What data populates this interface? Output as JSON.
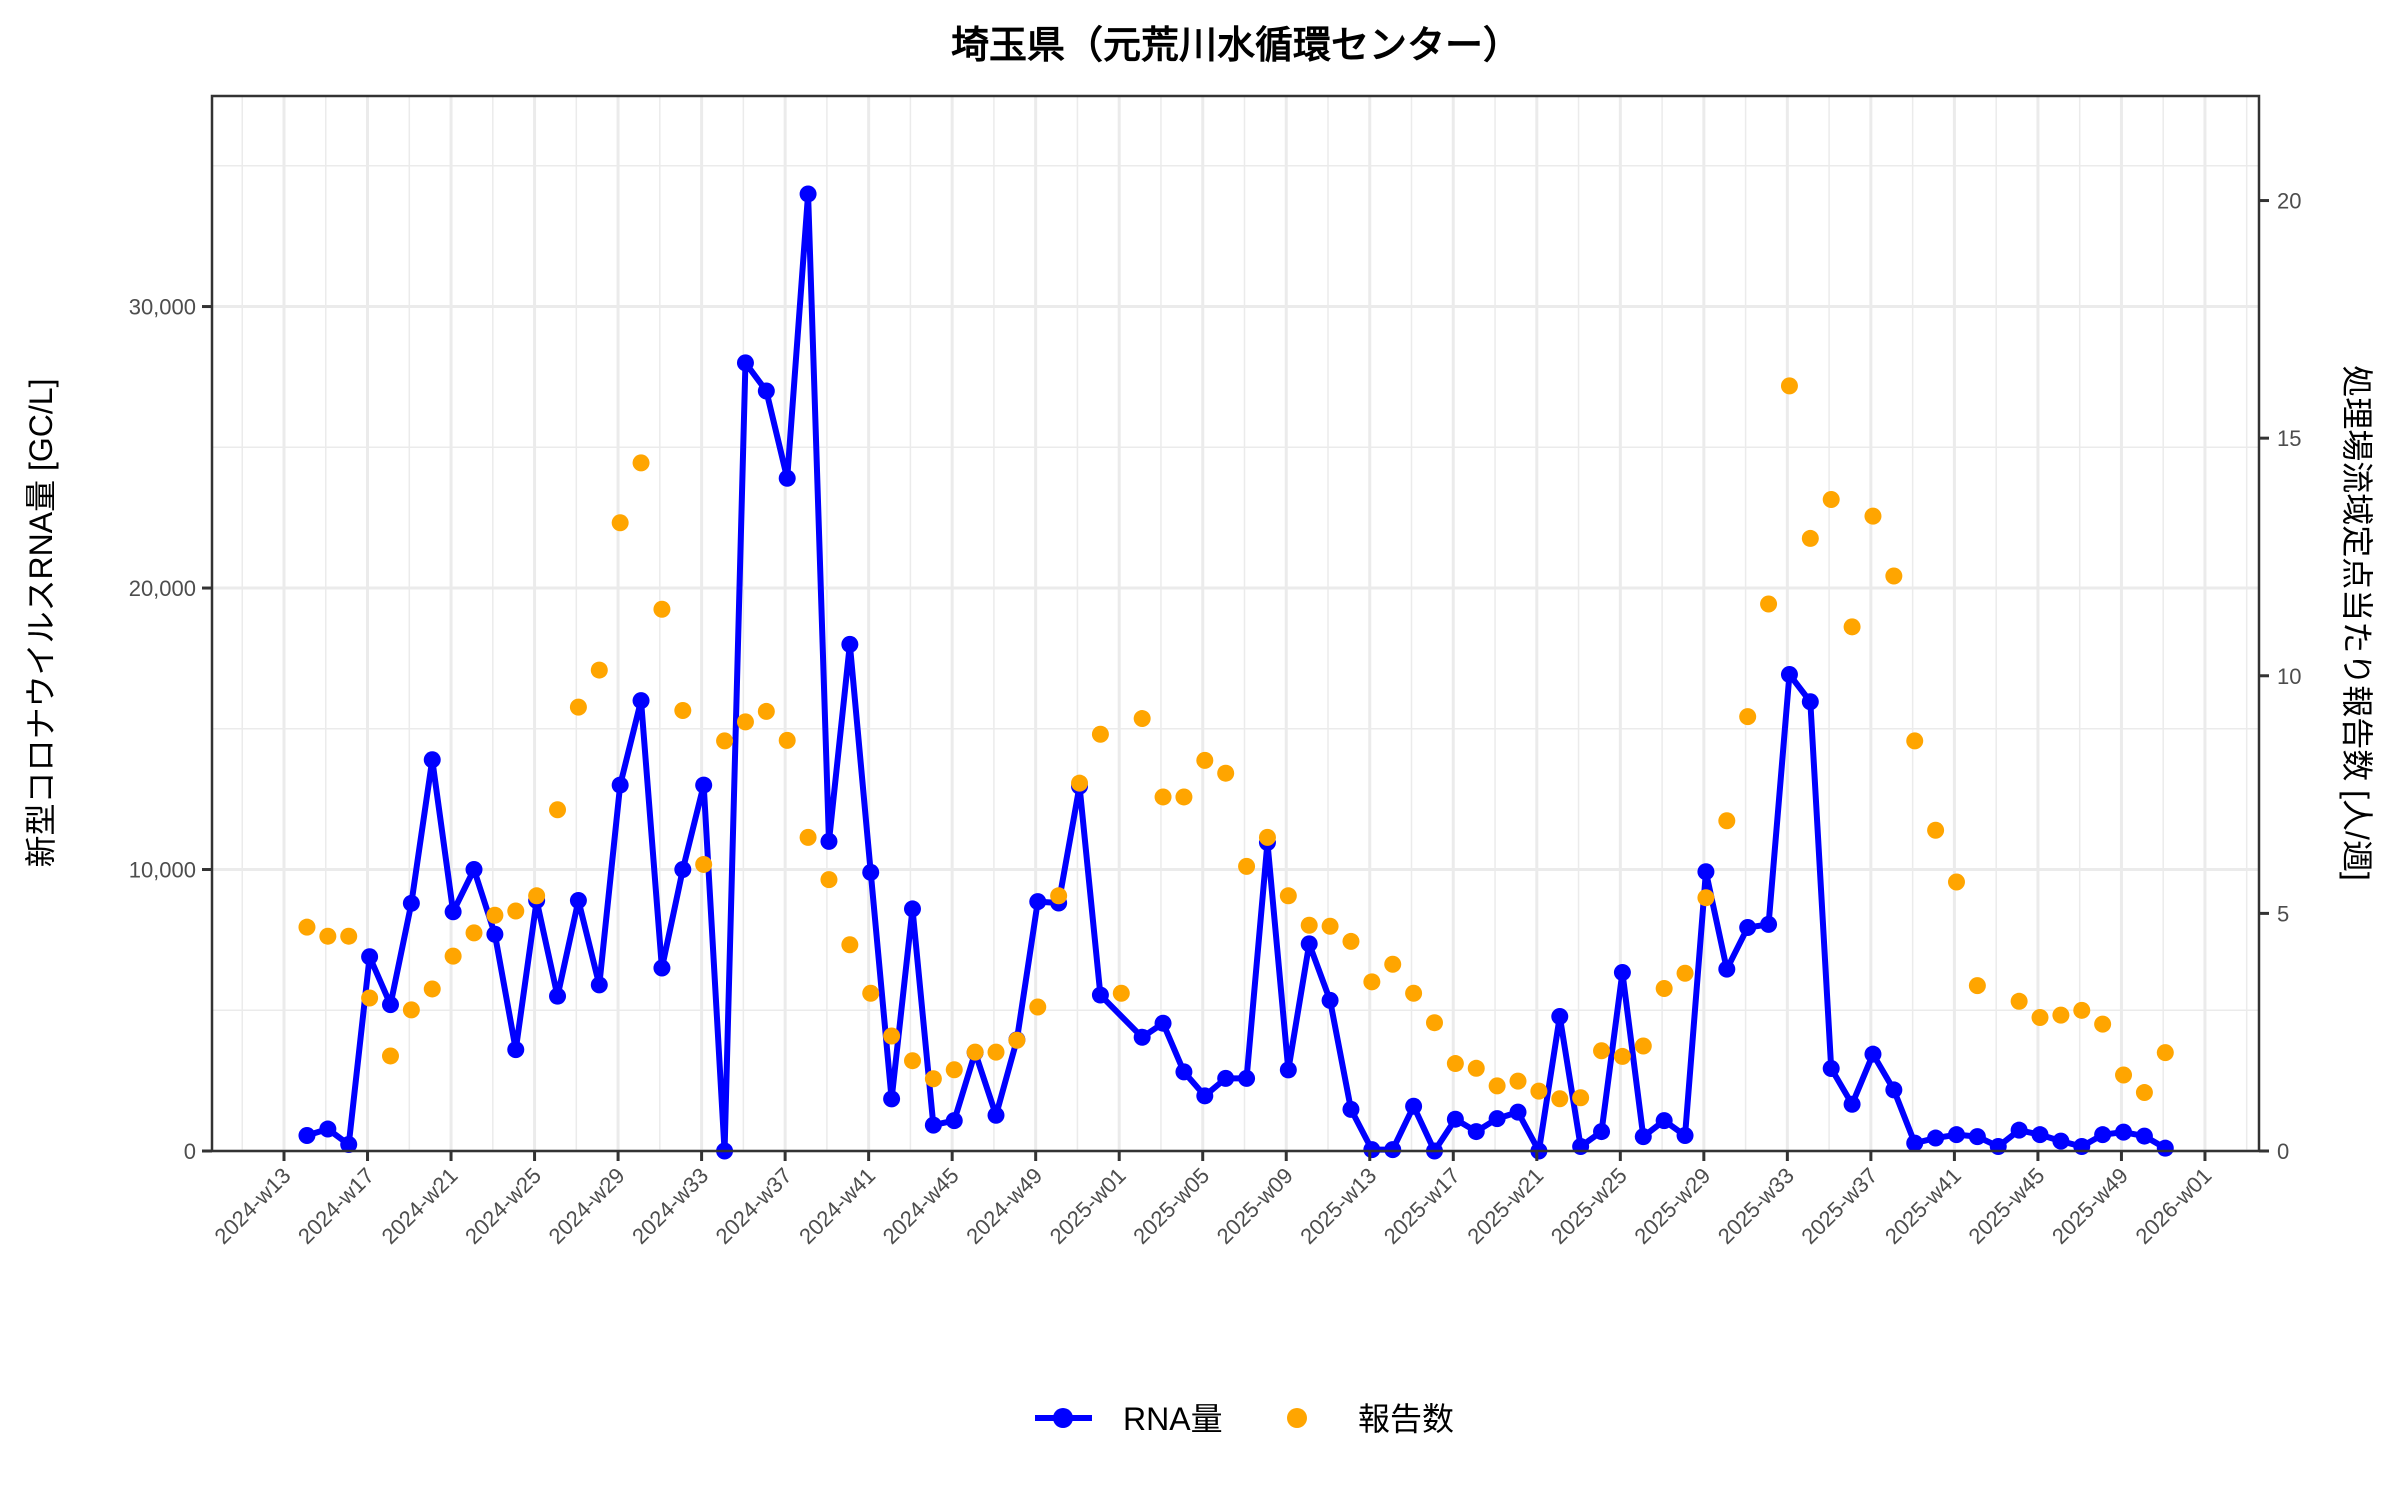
{
  "chart_data": {
    "type": "line",
    "title": "埼玉県（元荒川水循環センター）",
    "ylabel": "新型コロナウイルスRNA量 [GC/L]",
    "y2label": "処理場流域定点当たり報告数 [人/週]",
    "xlabel": "",
    "ylim": [
      0,
      37480
    ],
    "y2lim": [
      0,
      22.2
    ],
    "yticks": [
      0,
      10000,
      20000,
      30000
    ],
    "ytick_labels": [
      "0",
      "10,000",
      "20,000",
      "30,000"
    ],
    "y2ticks": [
      0,
      5,
      10,
      15,
      20
    ],
    "y2tick_labels": [
      "0",
      "5",
      "10",
      "15",
      "20"
    ],
    "xtick_labels": [
      "2024-w13",
      "2024-w17",
      "2024-w21",
      "2024-w25",
      "2024-w29",
      "2024-w33",
      "2024-w37",
      "2024-w41",
      "2024-w45",
      "2024-w49",
      "2025-w01",
      "2025-w05",
      "2025-w09",
      "2025-w13",
      "2025-w17",
      "2025-w21",
      "2025-w25",
      "2025-w29",
      "2025-w33",
      "2025-w37",
      "2025-w41",
      "2025-w45",
      "2025-w49",
      "2026-w01"
    ],
    "grid": true,
    "legend_position": "bottom",
    "x": [
      "2024-w14",
      "2024-w15",
      "2024-w16",
      "2024-w17",
      "2024-w18",
      "2024-w19",
      "2024-w20",
      "2024-w21",
      "2024-w22",
      "2024-w23",
      "2024-w24",
      "2024-w25",
      "2024-w26",
      "2024-w27",
      "2024-w28",
      "2024-w29",
      "2024-w30",
      "2024-w31",
      "2024-w32",
      "2024-w33",
      "2024-w34",
      "2024-w35",
      "2024-w36",
      "2024-w37",
      "2024-w38",
      "2024-w39",
      "2024-w40",
      "2024-w41",
      "2024-w42",
      "2024-w43",
      "2024-w44",
      "2024-w45",
      "2024-w46",
      "2024-w47",
      "2024-w48",
      "2024-w49",
      "2024-w50",
      "2024-w51",
      "2024-w52",
      "2025-w01",
      "2025-w02",
      "2025-w03",
      "2025-w04",
      "2025-w05",
      "2025-w06",
      "2025-w07",
      "2025-w08",
      "2025-w09",
      "2025-w10",
      "2025-w11",
      "2025-w12",
      "2025-w13",
      "2025-w14",
      "2025-w15",
      "2025-w16",
      "2025-w17",
      "2025-w18",
      "2025-w19",
      "2025-w20",
      "2025-w21",
      "2025-w22",
      "2025-w23",
      "2025-w24",
      "2025-w25",
      "2025-w26",
      "2025-w27",
      "2025-w28",
      "2025-w29",
      "2025-w30",
      "2025-w31",
      "2025-w32",
      "2025-w33",
      "2025-w34",
      "2025-w35",
      "2025-w36",
      "2025-w37",
      "2025-w38",
      "2025-w39",
      "2025-w40",
      "2025-w41",
      "2025-w42",
      "2025-w43",
      "2025-w44",
      "2025-w45",
      "2025-w46",
      "2025-w47",
      "2025-w48",
      "2025-w49",
      "2025-w50",
      "2025-w51"
    ],
    "series": [
      {
        "name": "RNA量",
        "type": "line",
        "axis": "left",
        "color": "#0000ff",
        "values": [
          550,
          780,
          230,
          6900,
          5200,
          8800,
          13900,
          8500,
          10000,
          7700,
          3600,
          8900,
          5500,
          8900,
          5900,
          13000,
          16000,
          6500,
          10000,
          13000,
          0,
          28000,
          27000,
          23900,
          34000,
          11000,
          18000,
          9900,
          1850,
          8600,
          920,
          1080,
          3500,
          1270,
          3950,
          8860,
          8810,
          12960,
          5540,
          null,
          4040,
          4540,
          2810,
          1960,
          2580,
          2580,
          10960,
          2880,
          7360,
          5350,
          1480,
          50,
          50,
          1590,
          0,
          1130,
          690,
          1150,
          1380,
          0,
          4780,
          160,
          690,
          6340,
          510,
          1080,
          550,
          9920,
          6460,
          7940,
          8050,
          16930,
          15960,
          2930,
          1660,
          3440,
          2170,
          280,
          460,
          580,
          510,
          160,
          740,
          580,
          350,
          160,
          580,
          670,
          530,
          100
        ]
      },
      {
        "name": "報告数",
        "type": "scatter",
        "axis": "right",
        "color": "#ffa500",
        "values": [
          4.71,
          4.52,
          4.52,
          3.22,
          2.0,
          2.97,
          3.41,
          4.1,
          4.59,
          4.96,
          5.05,
          5.37,
          7.18,
          9.34,
          10.12,
          13.22,
          14.48,
          11.4,
          9.27,
          6.03,
          8.63,
          9.03,
          9.25,
          8.64,
          6.6,
          5.71,
          4.34,
          3.32,
          2.42,
          1.9,
          1.52,
          1.71,
          2.08,
          2.08,
          2.33,
          3.03,
          5.37,
          7.74,
          8.77,
          3.32,
          9.1,
          7.45,
          7.45,
          8.22,
          7.95,
          5.99,
          6.6,
          5.37,
          4.75,
          4.73,
          4.41,
          3.56,
          3.93,
          3.32,
          2.7,
          1.84,
          1.74,
          1.37,
          1.47,
          1.26,
          1.1,
          1.12,
          2.11,
          1.99,
          2.21,
          3.42,
          3.74,
          5.33,
          6.95,
          9.14,
          11.51,
          16.1,
          12.89,
          13.71,
          11.03,
          13.36,
          12.1,
          8.63,
          6.75,
          5.66,
          3.48,
          null,
          3.15,
          2.81,
          2.86,
          2.96,
          2.67,
          1.6,
          1.23,
          2.07
        ]
      }
    ]
  }
}
